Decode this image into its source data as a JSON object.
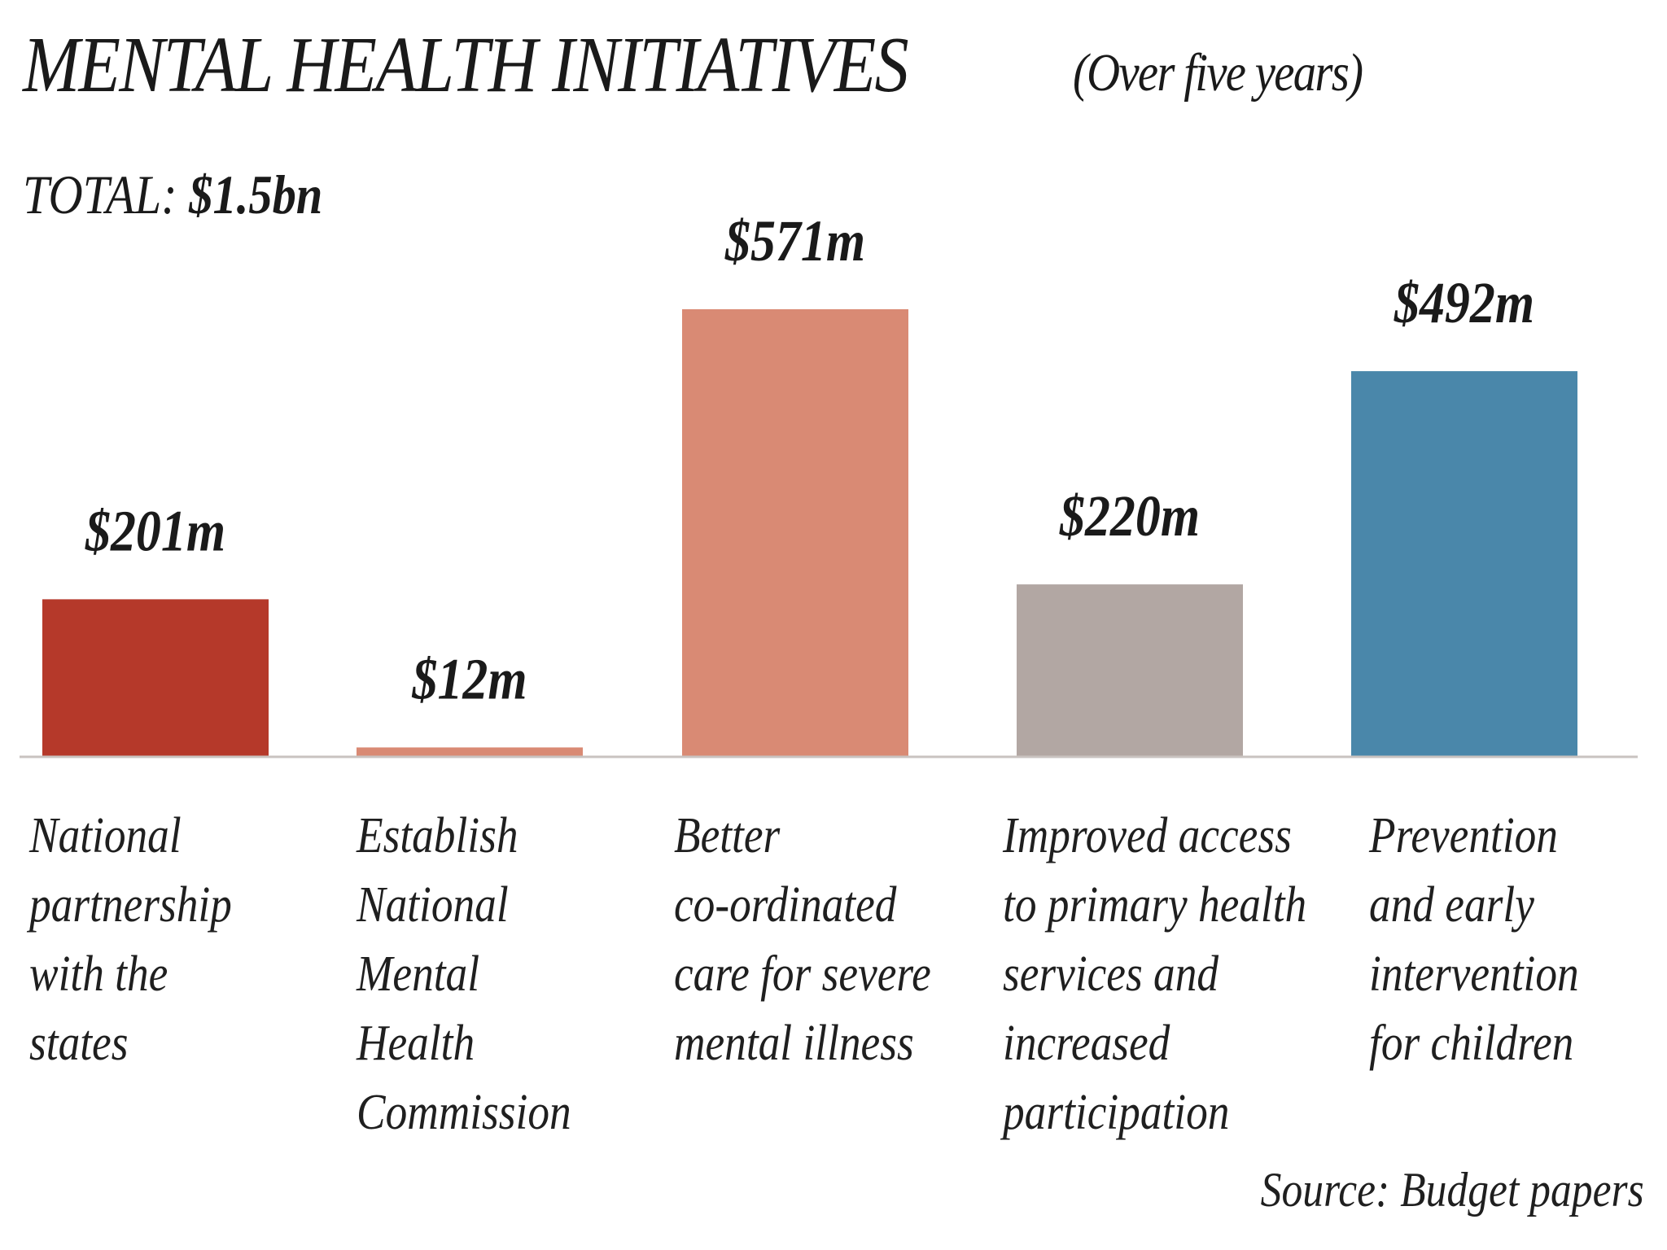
{
  "header": {
    "title": "MENTAL HEALTH INITIATIVES",
    "subtitle": "(Over five years)",
    "total_label": "TOTAL:",
    "total_value": "$1.5bn"
  },
  "footer": {
    "source": "Source: Budget papers"
  },
  "chart_data": {
    "type": "bar",
    "title": "MENTAL HEALTH INITIATIVES (Over five years)",
    "xlabel": "",
    "ylabel": "",
    "unit": "$m",
    "ylim": [
      0,
      600
    ],
    "grid": false,
    "categories": [
      "National partnership with the states",
      "Establish National Mental Health Commission",
      "Better co-ordinated care for severe mental illness",
      "Improved access to primary health services and increased participation",
      "Prevention and early intervention for children"
    ],
    "category_lines": [
      "National\npartnership\nwith the\nstates",
      "Establish\nNational\nMental\nHealth\nCommission",
      "Better\nco-ordinated\ncare for severe\nmental illness",
      "Improved access\nto primary health\nservices and\nincreased\nparticipation",
      "Prevention\nand early\nintervention\nfor children"
    ],
    "values": [
      201,
      12,
      571,
      220,
      492
    ],
    "value_labels": [
      "$201m",
      "$12m",
      "$571m",
      "$220m",
      "$492m"
    ],
    "colors": [
      "#b5392a",
      "#d98a74",
      "#d98a74",
      "#b2a7a3",
      "#4a87aa"
    ]
  }
}
